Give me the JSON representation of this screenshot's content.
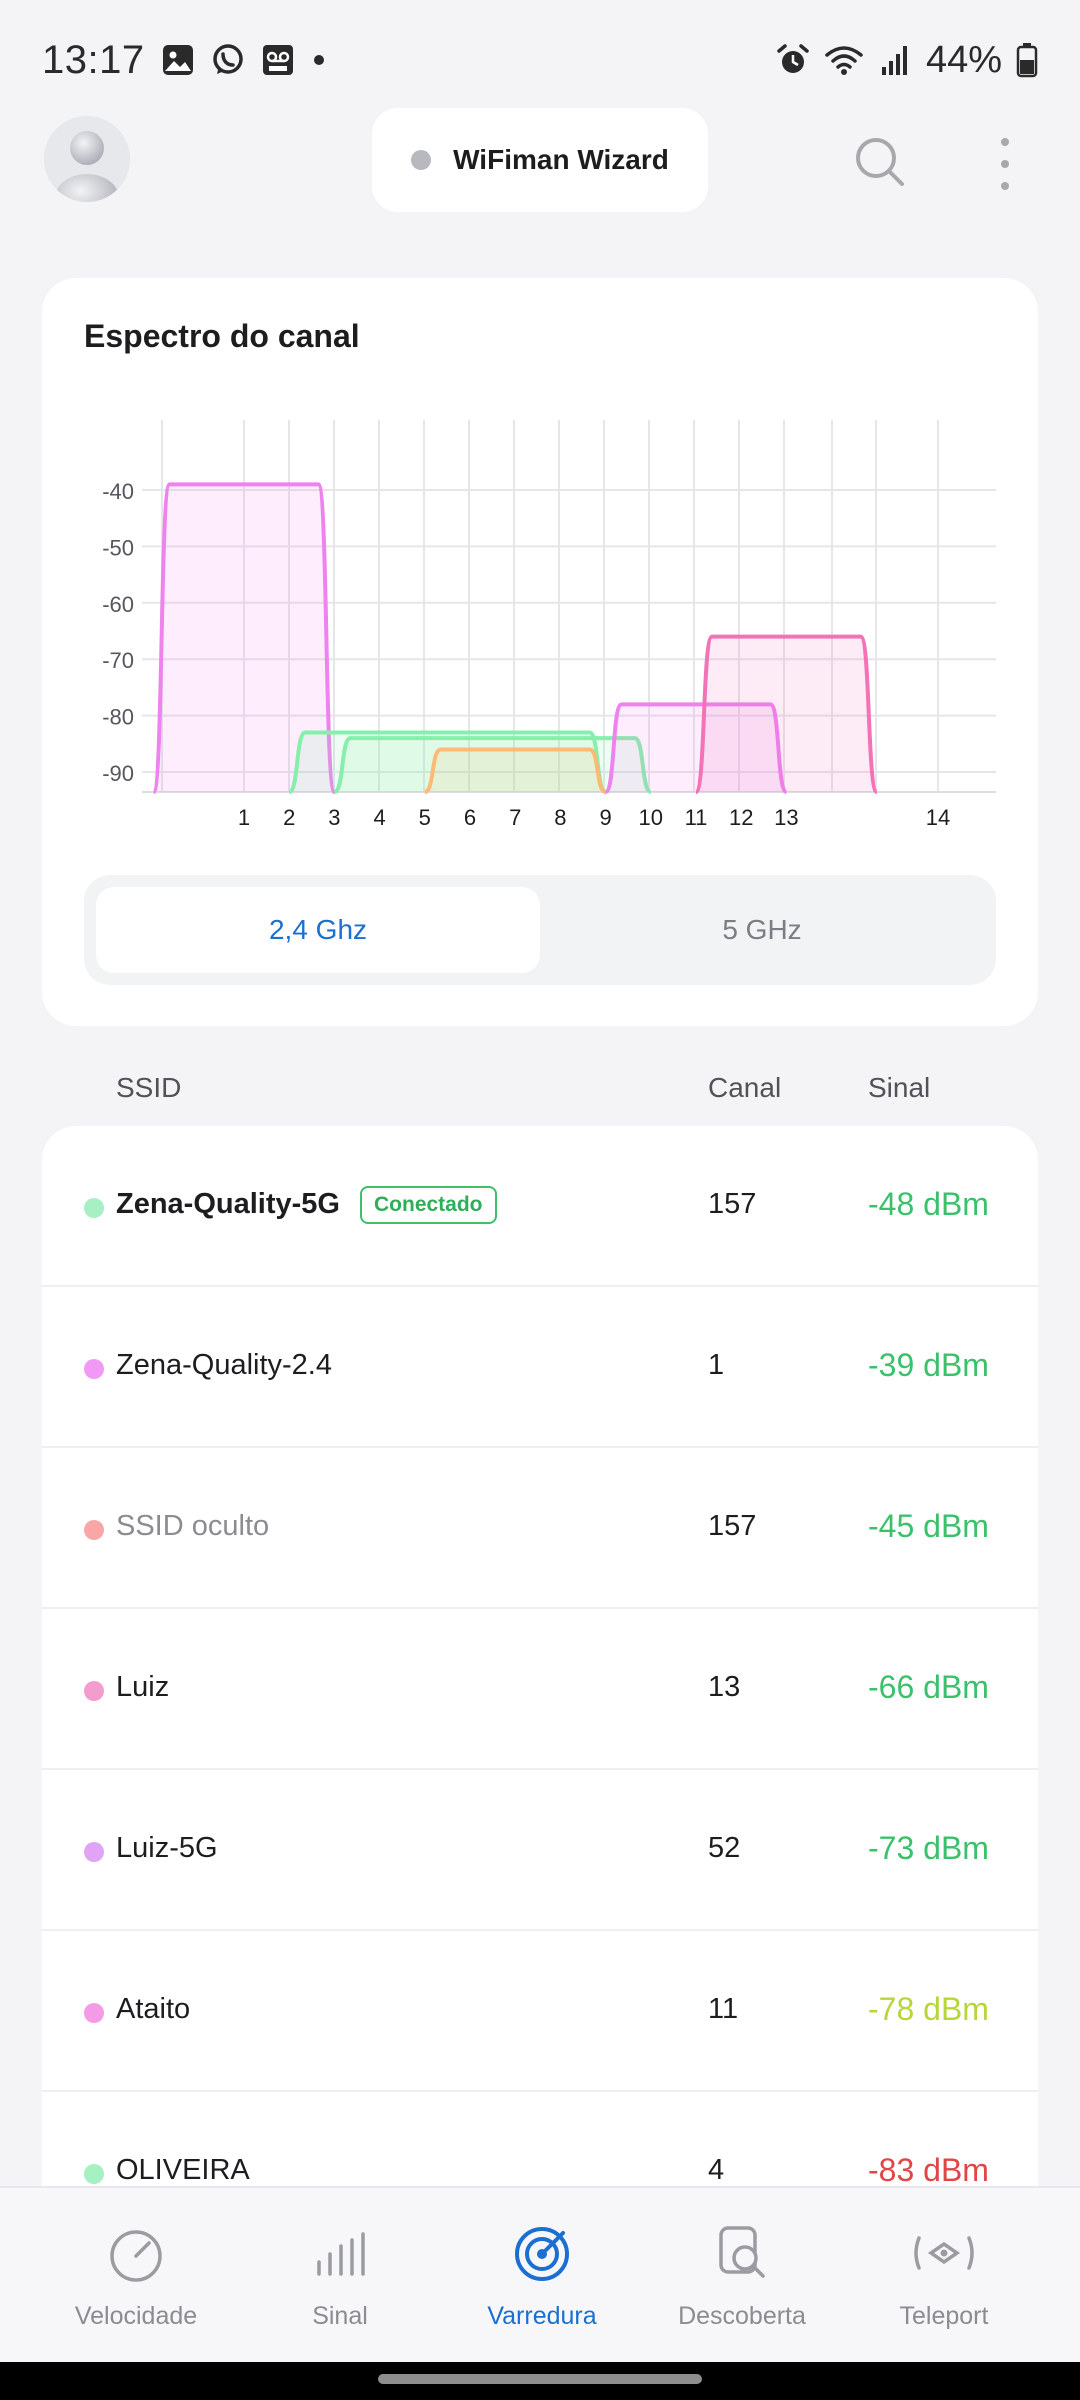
{
  "status_bar": {
    "time": "13:17",
    "battery": "44%"
  },
  "app_bar": {
    "title": "WiFiman Wizard"
  },
  "spectrum": {
    "title": "Espectro do canal",
    "bands": [
      "2,4 Ghz",
      "5 GHz"
    ],
    "active_band": "2,4 Ghz"
  },
  "chart_data": {
    "type": "area",
    "y_ticks": [
      "-40",
      "-50",
      "-60",
      "-70",
      "-80",
      "-90"
    ],
    "x_ticks": [
      "1",
      "2",
      "3",
      "4",
      "5",
      "6",
      "7",
      "8",
      "9",
      "10",
      "11",
      "12",
      "13",
      "14"
    ],
    "ylim": [
      -95,
      -35
    ],
    "grid": true,
    "series": [
      {
        "color": "#ee82ee",
        "channel_from": -1,
        "channel_to": 3,
        "level": -39
      },
      {
        "color": "#86efac",
        "channel_from": 2,
        "channel_to": 9,
        "level": -83
      },
      {
        "color": "#86efac",
        "channel_from": 3,
        "channel_to": 10,
        "level": -84
      },
      {
        "color": "#fdba74",
        "channel_from": 5,
        "channel_to": 9,
        "level": -86
      },
      {
        "color": "#ee82ee",
        "channel_from": 9,
        "channel_to": 13,
        "level": -78
      },
      {
        "color": "#f472b6",
        "channel_from": 11,
        "channel_to": 15,
        "level": -66
      }
    ]
  },
  "list_header": {
    "ssid": "SSID",
    "canal": "Canal",
    "sinal": "Sinal"
  },
  "networks": [
    {
      "name": "Zena-Quality-5G",
      "badge": "Conectado",
      "channel": "157",
      "signal": "-48 dBm",
      "dot": "#a7f0c4",
      "signal_color": "#3cc16b"
    },
    {
      "name": "Zena-Quality-2.4",
      "channel": "1",
      "signal": "-39 dBm",
      "dot": "#f09af5",
      "signal_color": "#3cc16b"
    },
    {
      "name": "SSID oculto",
      "channel": "157",
      "signal": "-45 dBm",
      "dot": "#f9a6a6",
      "signal_color": "#3cc16b"
    },
    {
      "name": "Luiz",
      "channel": "13",
      "signal": "-66 dBm",
      "dot": "#f59ccf",
      "signal_color": "#3cc16b"
    },
    {
      "name": "Luiz-5G",
      "channel": "52",
      "signal": "-73 dBm",
      "dot": "#e0a3f6",
      "signal_color": "#3cc16b"
    },
    {
      "name": "Ataito",
      "channel": "11",
      "signal": "-78 dBm",
      "dot": "#f59ae6",
      "signal_color": "#b7d63a"
    },
    {
      "name": "OLIVEIRA",
      "channel": "4",
      "signal": "-83 dBm",
      "dot": "#a7f0c4",
      "signal_color": "#e04646"
    }
  ],
  "bottom_nav": [
    {
      "label": "Velocidade",
      "icon": "speedometer-icon"
    },
    {
      "label": "Sinal",
      "icon": "signal-bars-icon"
    },
    {
      "label": "Varredura",
      "icon": "radar-icon",
      "active": true
    },
    {
      "label": "Descoberta",
      "icon": "device-search-icon"
    },
    {
      "label": "Teleport",
      "icon": "teleport-icon"
    }
  ]
}
